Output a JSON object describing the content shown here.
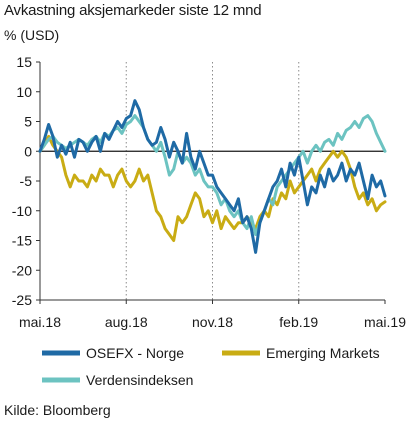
{
  "chart_data": {
    "type": "line",
    "title": "Avkastning aksjemarkeder siste 12 mnd",
    "unit": "% (USD)",
    "source": "Kilde: Bloomberg",
    "ylim": [
      -25,
      15
    ],
    "yticks": [
      15,
      10,
      5,
      0,
      -5,
      -10,
      -15,
      -20,
      -25
    ],
    "xlim": [
      0,
      12
    ],
    "xticks": [
      {
        "label": "mai.18",
        "pos": 0
      },
      {
        "label": "aug.18",
        "pos": 3
      },
      {
        "label": "nov.18",
        "pos": 6
      },
      {
        "label": "feb.19",
        "pos": 9
      },
      {
        "label": "mai.19",
        "pos": 12
      }
    ],
    "grid": "vertical dotted",
    "legend_position": "bottom",
    "series": [
      {
        "name": "OSEFX - Norge",
        "color": "#1f6aa5",
        "x": [
          0,
          0.15,
          0.3,
          0.45,
          0.6,
          0.75,
          0.9,
          1.05,
          1.2,
          1.35,
          1.5,
          1.65,
          1.8,
          1.95,
          2.1,
          2.25,
          2.4,
          2.55,
          2.7,
          2.85,
          3.0,
          3.15,
          3.3,
          3.45,
          3.6,
          3.75,
          3.9,
          4.05,
          4.2,
          4.35,
          4.5,
          4.65,
          4.8,
          4.95,
          5.1,
          5.25,
          5.4,
          5.55,
          5.7,
          5.85,
          6.0,
          6.15,
          6.3,
          6.45,
          6.6,
          6.75,
          6.9,
          7.05,
          7.2,
          7.35,
          7.5,
          7.65,
          7.8,
          7.95,
          8.1,
          8.25,
          8.4,
          8.55,
          8.7,
          8.85,
          9.0,
          9.15,
          9.3,
          9.45,
          9.6,
          9.75,
          9.9,
          10.05,
          10.2,
          10.35,
          10.5,
          10.65,
          10.8,
          10.95,
          11.1,
          11.25,
          11.4,
          11.55,
          11.7,
          11.85,
          12.0
        ],
        "y": [
          0,
          2,
          4.5,
          2.5,
          -1,
          1,
          -0.5,
          1.5,
          -1,
          2,
          1.5,
          0,
          1.5,
          2.5,
          0,
          3,
          2,
          3.5,
          5,
          4,
          5.5,
          6,
          8.5,
          7,
          4,
          2,
          1,
          1.5,
          4,
          2,
          -1,
          1.5,
          0,
          -2,
          3,
          -1,
          -3,
          0,
          -2,
          -4,
          -4,
          -6,
          -7,
          -8,
          -9,
          -10,
          -8,
          -12,
          -11,
          -13,
          -17,
          -12,
          -10,
          -8,
          -6,
          -5,
          -3,
          -6,
          -2,
          -4,
          -1,
          -5,
          -9,
          -6,
          -7,
          -4,
          -6,
          -3,
          -5,
          -4,
          -2,
          -5,
          -3,
          -4,
          -2,
          -5,
          -8,
          -4,
          -6,
          -5,
          -7.5
        ]
      },
      {
        "name": "Emerging Markets",
        "color": "#c9ac14",
        "x": [
          0,
          0.15,
          0.3,
          0.45,
          0.6,
          0.75,
          0.9,
          1.05,
          1.2,
          1.35,
          1.5,
          1.65,
          1.8,
          1.95,
          2.1,
          2.25,
          2.4,
          2.55,
          2.7,
          2.85,
          3.0,
          3.15,
          3.3,
          3.45,
          3.6,
          3.75,
          3.9,
          4.05,
          4.2,
          4.35,
          4.5,
          4.65,
          4.8,
          4.95,
          5.1,
          5.25,
          5.4,
          5.55,
          5.7,
          5.85,
          6.0,
          6.15,
          6.3,
          6.45,
          6.6,
          6.75,
          6.9,
          7.05,
          7.2,
          7.35,
          7.5,
          7.65,
          7.8,
          7.95,
          8.1,
          8.25,
          8.4,
          8.55,
          8.7,
          8.85,
          9.0,
          9.15,
          9.3,
          9.45,
          9.6,
          9.75,
          9.9,
          10.05,
          10.2,
          10.35,
          10.5,
          10.65,
          10.8,
          10.95,
          11.1,
          11.25,
          11.4,
          11.55,
          11.7,
          11.85,
          12.0
        ],
        "y": [
          0,
          1,
          2.5,
          1,
          0,
          -1,
          -4,
          -6,
          -4,
          -5,
          -5,
          -6,
          -4,
          -5,
          -3,
          -4,
          -4,
          -6,
          -4,
          -3,
          -5,
          -6,
          -5,
          -3,
          -5,
          -4,
          -7,
          -10,
          -11,
          -13,
          -14,
          -15,
          -11,
          -12,
          -11,
          -9,
          -7,
          -8,
          -11,
          -10,
          -12,
          -10,
          -13,
          -11,
          -12,
          -13,
          -12,
          -12,
          -11,
          -12,
          -13,
          -11,
          -10,
          -11,
          -8,
          -9,
          -7,
          -8,
          -5,
          -7,
          -6,
          -5,
          -4,
          -3,
          -5,
          -3,
          -2,
          -1,
          0,
          -1,
          0,
          -1,
          -3,
          -6,
          -8,
          -7,
          -9,
          -8,
          -10,
          -9,
          -8.5
        ]
      },
      {
        "name": "Verdensindeksen",
        "color": "#6cc3c1",
        "x": [
          0,
          0.15,
          0.3,
          0.45,
          0.6,
          0.75,
          0.9,
          1.05,
          1.2,
          1.35,
          1.5,
          1.65,
          1.8,
          1.95,
          2.1,
          2.25,
          2.4,
          2.55,
          2.7,
          2.85,
          3.0,
          3.15,
          3.3,
          3.45,
          3.6,
          3.75,
          3.9,
          4.05,
          4.2,
          4.35,
          4.5,
          4.65,
          4.8,
          4.95,
          5.1,
          5.25,
          5.4,
          5.55,
          5.7,
          5.85,
          6.0,
          6.15,
          6.3,
          6.45,
          6.6,
          6.75,
          6.9,
          7.05,
          7.2,
          7.35,
          7.5,
          7.65,
          7.8,
          7.95,
          8.1,
          8.25,
          8.4,
          8.55,
          8.7,
          8.85,
          9.0,
          9.15,
          9.3,
          9.45,
          9.6,
          9.75,
          9.9,
          10.05,
          10.2,
          10.35,
          10.5,
          10.65,
          10.8,
          10.95,
          11.1,
          11.25,
          11.4,
          11.55,
          11.7,
          11.85,
          12.0
        ],
        "y": [
          0,
          1,
          2,
          2.5,
          1.5,
          1,
          0.5,
          1,
          1.5,
          2,
          1.5,
          1,
          2,
          2.5,
          1.5,
          3,
          2.5,
          3.5,
          4,
          3,
          4.5,
          5,
          6,
          5,
          4,
          2,
          1,
          0,
          1.5,
          -1,
          -4,
          -3,
          0,
          -2,
          -1,
          -2,
          -4,
          -3,
          -5,
          -6,
          -6,
          -7,
          -9,
          -8,
          -10,
          -11,
          -10,
          -12,
          -13,
          -11,
          -14,
          -12,
          -10,
          -8,
          -9,
          -6,
          -5,
          -4,
          -3,
          -2,
          -1,
          0,
          -2,
          0,
          1,
          0,
          1.5,
          2,
          1,
          3,
          2,
          3.5,
          4,
          5,
          4,
          5.5,
          6,
          5,
          3,
          1.5,
          0
        ]
      }
    ]
  }
}
